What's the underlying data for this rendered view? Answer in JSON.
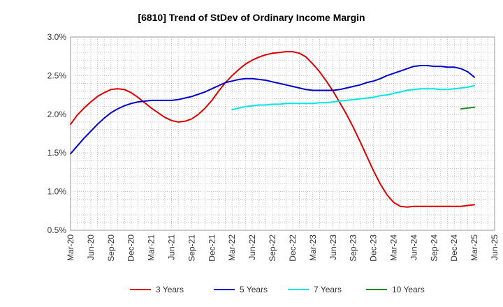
{
  "chart_data": {
    "type": "line",
    "title": "[6810]  Trend of StDev of Ordinary Income Margin",
    "xlabel": "",
    "ylabel": "",
    "ylim": [
      0.5,
      3.0
    ],
    "y_ticks": [
      0.5,
      1.0,
      1.5,
      2.0,
      2.5,
      3.0
    ],
    "y_tick_labels": [
      "0.5%",
      "1.0%",
      "1.5%",
      "2.0%",
      "2.5%",
      "3.0%"
    ],
    "x_tick_labels": [
      "Mar-20",
      "Jun-20",
      "Sep-20",
      "Dec-20",
      "Mar-21",
      "Jun-21",
      "Sep-21",
      "Dec-21",
      "Mar-22",
      "Jun-22",
      "Sep-22",
      "Dec-22",
      "Mar-23",
      "Jun-23",
      "Sep-23",
      "Dec-23",
      "Mar-24",
      "Jun-24",
      "Sep-24",
      "Dec-24",
      "Mar-25",
      "Jun-25"
    ],
    "grid": true,
    "legend_position": "bottom",
    "series": [
      {
        "name": "3 Years",
        "color": "#dd0000",
        "points": [
          [
            "Mar-20",
            1.87
          ],
          [
            "Apr-20",
            1.99
          ],
          [
            "May-20",
            2.08
          ],
          [
            "Jun-20",
            2.16
          ],
          [
            "Jul-20",
            2.23
          ],
          [
            "Aug-20",
            2.28
          ],
          [
            "Sep-20",
            2.32
          ],
          [
            "Oct-20",
            2.33
          ],
          [
            "Nov-20",
            2.32
          ],
          [
            "Dec-20",
            2.28
          ],
          [
            "Jan-21",
            2.22
          ],
          [
            "Feb-21",
            2.15
          ],
          [
            "Mar-21",
            2.08
          ],
          [
            "Apr-21",
            2.02
          ],
          [
            "May-21",
            1.96
          ],
          [
            "Jun-21",
            1.92
          ],
          [
            "Jul-21",
            1.9
          ],
          [
            "Aug-21",
            1.91
          ],
          [
            "Sep-21",
            1.94
          ],
          [
            "Oct-21",
            2.0
          ],
          [
            "Nov-21",
            2.08
          ],
          [
            "Dec-21",
            2.18
          ],
          [
            "Jan-22",
            2.3
          ],
          [
            "Feb-22",
            2.41
          ],
          [
            "Mar-22",
            2.5
          ],
          [
            "Apr-22",
            2.58
          ],
          [
            "May-22",
            2.65
          ],
          [
            "Jun-22",
            2.7
          ],
          [
            "Jul-22",
            2.74
          ],
          [
            "Aug-22",
            2.77
          ],
          [
            "Sep-22",
            2.79
          ],
          [
            "Oct-22",
            2.8
          ],
          [
            "Nov-22",
            2.81
          ],
          [
            "Dec-22",
            2.81
          ],
          [
            "Jan-23",
            2.79
          ],
          [
            "Feb-23",
            2.74
          ],
          [
            "Mar-23",
            2.65
          ],
          [
            "Apr-23",
            2.55
          ],
          [
            "May-23",
            2.43
          ],
          [
            "Jun-23",
            2.3
          ],
          [
            "Jul-23",
            2.15
          ],
          [
            "Aug-23",
            2.0
          ],
          [
            "Sep-23",
            1.83
          ],
          [
            "Oct-23",
            1.65
          ],
          [
            "Nov-23",
            1.46
          ],
          [
            "Dec-23",
            1.27
          ],
          [
            "Jan-24",
            1.1
          ],
          [
            "Feb-24",
            0.96
          ],
          [
            "Mar-24",
            0.86
          ],
          [
            "Apr-24",
            0.81
          ],
          [
            "May-24",
            0.8
          ],
          [
            "Jun-24",
            0.81
          ],
          [
            "Jul-24",
            0.81
          ],
          [
            "Aug-24",
            0.81
          ],
          [
            "Sep-24",
            0.81
          ],
          [
            "Oct-24",
            0.81
          ],
          [
            "Nov-24",
            0.81
          ],
          [
            "Dec-24",
            0.81
          ],
          [
            "Jan-25",
            0.81
          ],
          [
            "Feb-25",
            0.82
          ],
          [
            "Mar-25",
            0.83
          ]
        ]
      },
      {
        "name": "5 Years",
        "color": "#0000cc",
        "points": [
          [
            "Mar-20",
            1.49
          ],
          [
            "Apr-20",
            1.59
          ],
          [
            "May-20",
            1.69
          ],
          [
            "Jun-20",
            1.78
          ],
          [
            "Jul-20",
            1.87
          ],
          [
            "Aug-20",
            1.95
          ],
          [
            "Sep-20",
            2.02
          ],
          [
            "Oct-20",
            2.07
          ],
          [
            "Nov-20",
            2.11
          ],
          [
            "Dec-20",
            2.14
          ],
          [
            "Jan-21",
            2.16
          ],
          [
            "Feb-21",
            2.17
          ],
          [
            "Mar-21",
            2.18
          ],
          [
            "Apr-21",
            2.18
          ],
          [
            "May-21",
            2.18
          ],
          [
            "Jun-21",
            2.18
          ],
          [
            "Jul-21",
            2.19
          ],
          [
            "Aug-21",
            2.21
          ],
          [
            "Sep-21",
            2.23
          ],
          [
            "Oct-21",
            2.26
          ],
          [
            "Nov-21",
            2.29
          ],
          [
            "Dec-21",
            2.33
          ],
          [
            "Jan-22",
            2.37
          ],
          [
            "Feb-22",
            2.41
          ],
          [
            "Mar-22",
            2.43
          ],
          [
            "Apr-22",
            2.45
          ],
          [
            "May-22",
            2.46
          ],
          [
            "Jun-22",
            2.46
          ],
          [
            "Jul-22",
            2.45
          ],
          [
            "Aug-22",
            2.44
          ],
          [
            "Sep-22",
            2.42
          ],
          [
            "Oct-22",
            2.4
          ],
          [
            "Nov-22",
            2.38
          ],
          [
            "Dec-22",
            2.36
          ],
          [
            "Jan-23",
            2.34
          ],
          [
            "Feb-23",
            2.32
          ],
          [
            "Mar-23",
            2.31
          ],
          [
            "Apr-23",
            2.31
          ],
          [
            "May-23",
            2.31
          ],
          [
            "Jun-23",
            2.31
          ],
          [
            "Jul-23",
            2.32
          ],
          [
            "Aug-23",
            2.34
          ],
          [
            "Sep-23",
            2.36
          ],
          [
            "Oct-23",
            2.38
          ],
          [
            "Nov-23",
            2.41
          ],
          [
            "Dec-23",
            2.43
          ],
          [
            "Jan-24",
            2.46
          ],
          [
            "Feb-24",
            2.5
          ],
          [
            "Mar-24",
            2.53
          ],
          [
            "Apr-24",
            2.56
          ],
          [
            "May-24",
            2.59
          ],
          [
            "Jun-24",
            2.62
          ],
          [
            "Jul-24",
            2.63
          ],
          [
            "Aug-24",
            2.63
          ],
          [
            "Sep-24",
            2.62
          ],
          [
            "Oct-24",
            2.62
          ],
          [
            "Nov-24",
            2.61
          ],
          [
            "Dec-24",
            2.61
          ],
          [
            "Jan-25",
            2.59
          ],
          [
            "Feb-25",
            2.55
          ],
          [
            "Mar-25",
            2.48
          ]
        ]
      },
      {
        "name": "7 Years",
        "color": "#00e5e5",
        "points": [
          [
            "Mar-22",
            2.06
          ],
          [
            "Apr-22",
            2.08
          ],
          [
            "May-22",
            2.1
          ],
          [
            "Jun-22",
            2.11
          ],
          [
            "Jul-22",
            2.12
          ],
          [
            "Aug-22",
            2.12
          ],
          [
            "Sep-22",
            2.13
          ],
          [
            "Oct-22",
            2.13
          ],
          [
            "Nov-22",
            2.14
          ],
          [
            "Dec-22",
            2.14
          ],
          [
            "Jan-23",
            2.14
          ],
          [
            "Feb-23",
            2.14
          ],
          [
            "Mar-23",
            2.14
          ],
          [
            "Apr-23",
            2.15
          ],
          [
            "May-23",
            2.15
          ],
          [
            "Jun-23",
            2.16
          ],
          [
            "Jul-23",
            2.17
          ],
          [
            "Aug-23",
            2.18
          ],
          [
            "Sep-23",
            2.19
          ],
          [
            "Oct-23",
            2.2
          ],
          [
            "Nov-23",
            2.21
          ],
          [
            "Dec-23",
            2.22
          ],
          [
            "Jan-24",
            2.24
          ],
          [
            "Feb-24",
            2.25
          ],
          [
            "Mar-24",
            2.27
          ],
          [
            "Apr-24",
            2.29
          ],
          [
            "May-24",
            2.31
          ],
          [
            "Jun-24",
            2.32
          ],
          [
            "Jul-24",
            2.33
          ],
          [
            "Aug-24",
            2.33
          ],
          [
            "Sep-24",
            2.33
          ],
          [
            "Oct-24",
            2.32
          ],
          [
            "Nov-24",
            2.32
          ],
          [
            "Dec-24",
            2.33
          ],
          [
            "Jan-25",
            2.34
          ],
          [
            "Feb-25",
            2.35
          ],
          [
            "Mar-25",
            2.37
          ]
        ]
      },
      {
        "name": "10 Years",
        "color": "#228b22",
        "points": [
          [
            "Jan-25",
            2.07
          ],
          [
            "Feb-25",
            2.08
          ],
          [
            "Mar-25",
            2.09
          ]
        ]
      }
    ]
  }
}
